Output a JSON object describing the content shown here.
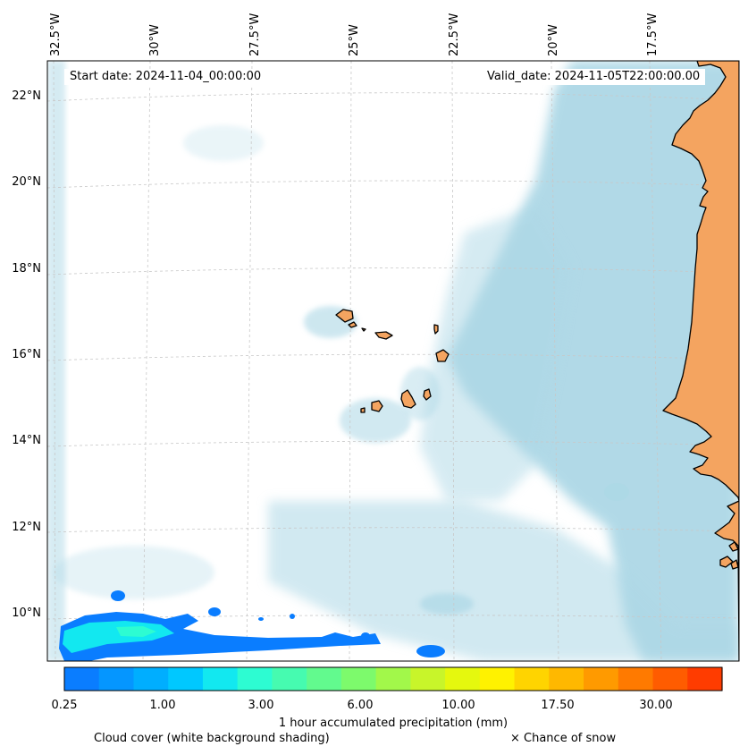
{
  "map": {
    "start_date": "Start date: 2024-11-04_00:00:00",
    "valid_date": "Valid_date: 2024-11-05T22:00:00.00",
    "lon_labels": [
      "32.5°W",
      "30°W",
      "27.5°W",
      "25°W",
      "22.5°W",
      "20°W",
      "17.5°W"
    ],
    "lat_labels": [
      "22°N",
      "20°N",
      "18°N",
      "16°N",
      "14°N",
      "12°N",
      "10°N"
    ]
  },
  "colorbar": {
    "title": "1 hour accumulated precipitation (mm)",
    "tick_labels": [
      "0.25",
      "1.00",
      "3.00",
      "6.00",
      "10.00",
      "17.50",
      "30.00"
    ],
    "colors": [
      "#0a7dff",
      "#0596ff",
      "#00aeff",
      "#00c8ff",
      "#12e8f0",
      "#2dfcd2",
      "#46fbb0",
      "#62fa8e",
      "#7dfa6c",
      "#a2f84a",
      "#c8f52a",
      "#e5f80e",
      "#fff200",
      "#ffd400",
      "#ffb800",
      "#ff9a00",
      "#ff7a00",
      "#ff5c00",
      "#ff3c00"
    ]
  },
  "legend": {
    "cloud_cover": "Cloud cover (white background shading)",
    "snow": "× Chance of snow"
  },
  "colors": {
    "land": "#f4a460",
    "cloud_shade": "#add8e6",
    "precip_low": "#0a7dff",
    "precip_mid": "#12e8f0"
  }
}
